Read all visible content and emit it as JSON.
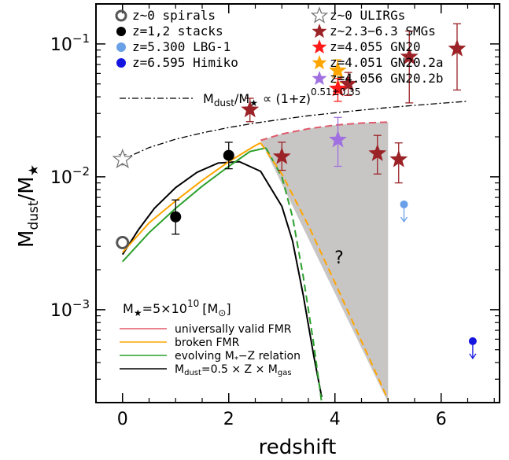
{
  "chart_data": {
    "type": "scatter",
    "xlabel": "redshift",
    "ylabel_main": "M",
    "ylabel_sub_num": "dust",
    "ylabel_sep": "/M",
    "ylabel_sub_den": "★",
    "xlim": [
      -0.5,
      7.1
    ],
    "ylim": [
      0.0002,
      0.2
    ],
    "yscale": "log",
    "x_ticks": [
      0,
      2,
      4,
      6
    ],
    "y_tick_labels": [
      {
        "value": 0.1,
        "base": "10",
        "exp": "−1"
      },
      {
        "value": 0.01,
        "base": "10",
        "exp": "−2"
      },
      {
        "value": 0.001,
        "base": "10",
        "exp": "−3"
      }
    ],
    "legend_left": [
      {
        "label": "z~0 spirals",
        "marker": "open-circle",
        "color": "#555555"
      },
      {
        "label": "z=1,2 stacks",
        "marker": "circle",
        "color": "#000000"
      },
      {
        "label": "z=5.300 LBG-1",
        "marker": "circle",
        "color": "#6aa0e8"
      },
      {
        "label": "z=6.595 Himiko",
        "marker": "circle",
        "color": "#1515e0"
      }
    ],
    "legend_right": [
      {
        "label": "z~0 ULIRGs",
        "marker": "open-star",
        "color": "#777777"
      },
      {
        "label": "z~2.3−6.3 SMGs",
        "marker": "star",
        "color": "#9b2226"
      },
      {
        "label": "z=4.055 GN20",
        "marker": "star",
        "color": "#ff1a1a"
      },
      {
        "label": "z=4.051 GN20.2a",
        "marker": "star",
        "color": "#ffa500"
      },
      {
        "label": "z=4.056 GN20.2b",
        "marker": "star",
        "color": "#a070e0"
      }
    ],
    "annotation": {
      "text_m": "M",
      "text_dust": "dust",
      "text_mid": "/M",
      "text_star": "★",
      "text_prop": "∝ (1+z)",
      "text_exp": "0.51±0.35"
    },
    "model_legend": {
      "title_m": "M",
      "title_star": "★",
      "title_eq": "=5×10",
      "title_exp": "10",
      "title_unit": "[M",
      "title_sun": "⊙",
      "title_close": "]",
      "items": [
        {
          "label": "universally valid FMR",
          "color": "#e05a6a"
        },
        {
          "label": "broken FMR",
          "color": "#ffa500"
        },
        {
          "label_a": "evolving M",
          "label_sub": "*",
          "label_b": "−Z relation",
          "color": "#2ca02c"
        },
        {
          "label_a": "M",
          "label_sub": "dust",
          "label_b": "=0.5 × Z × M",
          "label_sub2": "gas",
          "color": "#000000"
        }
      ]
    },
    "question_mark": "?",
    "spirals": [
      {
        "x": 0.0,
        "y": 0.0032
      }
    ],
    "ulirgs": [
      {
        "x": 0.0,
        "y": 0.0135,
        "yerr_lo": 0.0012,
        "yerr_hi": 0.0012
      }
    ],
    "stacks": [
      {
        "x": 1.0,
        "y": 0.005,
        "yerr_lo": 0.0013,
        "yerr_hi": 0.0017
      },
      {
        "x": 2.0,
        "y": 0.0145,
        "yerr_lo": 0.003,
        "yerr_hi": 0.0037
      }
    ],
    "smgs": [
      {
        "x": 2.4,
        "y": 0.032,
        "yerr_lo": 0.006,
        "yerr_hi": 0.007
      },
      {
        "x": 3.0,
        "y": 0.0142,
        "yerr_lo": 0.003,
        "yerr_hi": 0.004
      },
      {
        "x": 4.25,
        "y": 0.05,
        "yerr_lo": 0.009,
        "yerr_hi": 0.011
      },
      {
        "x": 4.8,
        "y": 0.015,
        "yerr_lo": 0.0045,
        "yerr_hi": 0.0055
      },
      {
        "x": 5.2,
        "y": 0.0135,
        "yerr_lo": 0.0045,
        "yerr_hi": 0.0045
      },
      {
        "x": 5.4,
        "y": 0.08,
        "yerr_lo": 0.044,
        "yerr_hi": 0.045
      },
      {
        "x": 6.3,
        "y": 0.092,
        "yerr_lo": 0.047,
        "yerr_hi": 0.05
      }
    ],
    "gn20": [
      {
        "x": 4.055,
        "y": 0.046,
        "yerr_lo": 0.009,
        "yerr_hi": 0.009
      }
    ],
    "gn20_2a": [
      {
        "x": 4.051,
        "y": 0.063,
        "yerr_lo": 0.012,
        "yerr_hi": 0.013
      }
    ],
    "gn20_2b": [
      {
        "x": 4.056,
        "y": 0.019,
        "yerr_lo": 0.007,
        "yerr_hi": 0.009
      }
    ],
    "lbg1_upper_limit": {
      "x": 5.3,
      "y": 0.0062
    },
    "himiko_upper_limit": {
      "x": 6.595,
      "y": 0.00058
    },
    "trend_line": {
      "x": [
        0.0,
        0.5,
        1.0,
        1.5,
        2.0,
        2.5,
        3.0,
        3.5,
        4.0,
        4.5,
        5.0,
        5.5,
        6.0,
        6.5
      ],
      "y": [
        0.0135,
        0.0166,
        0.0192,
        0.0214,
        0.0235,
        0.0254,
        0.0271,
        0.0288,
        0.0303,
        0.0318,
        0.0332,
        0.0345,
        0.0358,
        0.037
      ]
    },
    "fmr_red": {
      "x": [
        2.6,
        3.0,
        3.5,
        4.0,
        4.5,
        5.0
      ],
      "y": [
        0.0188,
        0.021,
        0.023,
        0.0245,
        0.0254,
        0.0258
      ]
    },
    "broken_fmr": {
      "x": [
        0.0,
        0.5,
        1.0,
        1.5,
        2.0,
        2.5,
        2.6,
        3.0,
        3.5,
        4.0,
        4.5,
        5.0
      ],
      "y": [
        0.0027,
        0.0045,
        0.0066,
        0.0094,
        0.013,
        0.0172,
        0.018,
        0.0105,
        0.0043,
        0.0016,
        0.00058,
        0.00021
      ]
    },
    "green_curve": {
      "x": [
        0.0,
        0.5,
        1.0,
        1.5,
        2.0,
        2.4,
        2.7,
        3.0,
        3.2,
        3.4,
        3.6,
        3.75
      ],
      "y": [
        0.0023,
        0.0038,
        0.0058,
        0.0085,
        0.012,
        0.0155,
        0.0165,
        0.01,
        0.005,
        0.0018,
        0.00055,
        0.0002
      ]
    },
    "black_curve": {
      "x": [
        0.0,
        0.3,
        0.6,
        1.0,
        1.4,
        1.8,
        2.2,
        2.6,
        3.0,
        3.2,
        3.4,
        3.6,
        3.75
      ],
      "y": [
        0.0026,
        0.004,
        0.0058,
        0.0083,
        0.0108,
        0.0127,
        0.013,
        0.011,
        0.006,
        0.0033,
        0.0013,
        0.00045,
        0.00022
      ]
    },
    "shaded_region": {
      "x": [
        2.6,
        3.0,
        3.5,
        4.0,
        4.5,
        5.0,
        5.0
      ],
      "y_top": [
        0.0188,
        0.021,
        0.023,
        0.0245,
        0.0254,
        0.0258,
        0.0258
      ],
      "y_bottom_at_5": 0.0002
    }
  }
}
